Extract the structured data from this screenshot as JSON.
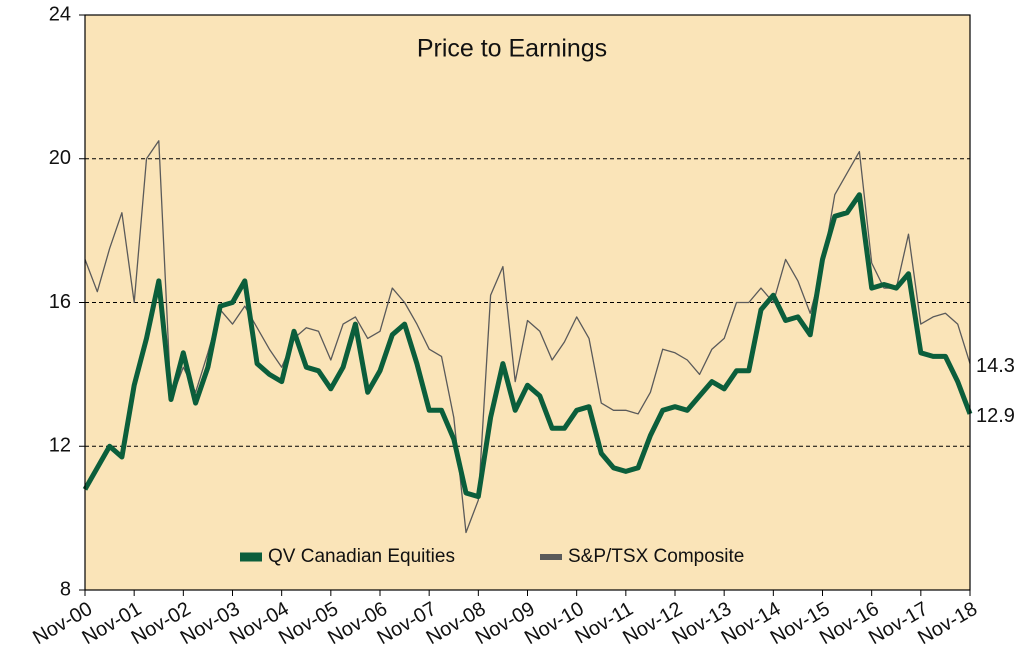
{
  "chart_data": {
    "type": "line",
    "title": "Price to Earnings",
    "categories": [
      "Nov-00",
      null,
      null,
      null,
      "Nov-01",
      null,
      null,
      null,
      "Nov-02",
      null,
      null,
      null,
      "Nov-03",
      null,
      null,
      null,
      "Nov-04",
      null,
      null,
      null,
      "Nov-05",
      null,
      null,
      null,
      "Nov-06",
      null,
      null,
      null,
      "Nov-07",
      null,
      null,
      null,
      "Nov-08",
      null,
      null,
      null,
      "Nov-09",
      null,
      null,
      null,
      "Nov-10",
      null,
      null,
      null,
      "Nov-11",
      null,
      null,
      null,
      "Nov-12",
      null,
      null,
      null,
      "Nov-13",
      null,
      null,
      null,
      "Nov-14",
      null,
      null,
      null,
      "Nov-15",
      null,
      null,
      null,
      "Nov-16",
      null,
      null,
      null,
      "Nov-17",
      null,
      null,
      null,
      "Nov-18"
    ],
    "series": [
      {
        "name": "QV Canadian Equities",
        "color": "#0b5e3b",
        "values": [
          10.8,
          11.4,
          12.0,
          11.7,
          13.7,
          15.0,
          16.6,
          13.3,
          14.6,
          13.2,
          14.2,
          15.9,
          16.0,
          16.6,
          14.3,
          14.0,
          13.8,
          15.2,
          14.2,
          14.1,
          13.6,
          14.2,
          15.4,
          13.5,
          14.1,
          15.1,
          15.4,
          14.3,
          13.0,
          13.0,
          12.2,
          10.7,
          10.6,
          12.8,
          14.3,
          13.0,
          13.7,
          13.4,
          12.5,
          12.5,
          13.0,
          13.1,
          11.8,
          11.4,
          11.3,
          11.4,
          12.3,
          13.0,
          13.1,
          13.0,
          13.4,
          13.8,
          13.6,
          14.1,
          14.1,
          15.8,
          16.2,
          15.5,
          15.6,
          15.1,
          17.2,
          18.4,
          18.5,
          19.0,
          16.4,
          16.5,
          16.4,
          16.8,
          14.6,
          14.5,
          14.5,
          13.8,
          12.9
        ]
      },
      {
        "name": "S&P/TSX Composite",
        "color": "#5a5a5a",
        "values": [
          17.2,
          16.3,
          17.5,
          18.5,
          16.0,
          20.0,
          20.5,
          13.3,
          14.2,
          13.5,
          14.6,
          15.8,
          15.4,
          15.9,
          15.3,
          14.7,
          14.2,
          15.0,
          15.3,
          15.2,
          14.4,
          15.4,
          15.6,
          15.0,
          15.2,
          16.4,
          16.0,
          15.4,
          14.7,
          14.5,
          12.8,
          9.6,
          10.5,
          16.2,
          17.0,
          13.8,
          15.5,
          15.2,
          14.4,
          14.9,
          15.6,
          15.0,
          13.2,
          13.0,
          13.0,
          12.9,
          13.5,
          14.7,
          14.6,
          14.4,
          14.0,
          14.7,
          15.0,
          16.0,
          16.0,
          16.4,
          16.0,
          17.2,
          16.6,
          15.7,
          17.0,
          19.0,
          19.6,
          20.2,
          17.1,
          16.4,
          16.4,
          17.9,
          15.4,
          15.6,
          15.7,
          15.4,
          14.3
        ]
      }
    ],
    "ylim": [
      8,
      24
    ],
    "yticks": [
      8,
      12,
      16,
      20,
      24
    ],
    "grid": true,
    "label_last": true,
    "legend": "bottom"
  }
}
